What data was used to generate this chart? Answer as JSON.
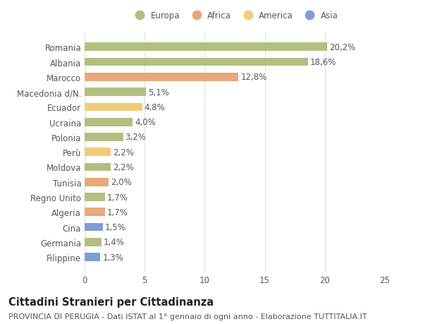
{
  "categories": [
    "Filippine",
    "Germania",
    "Cina",
    "Algeria",
    "Regno Unito",
    "Tunisia",
    "Moldova",
    "Perù",
    "Polonia",
    "Ucraina",
    "Ecuador",
    "Macedonia d/N.",
    "Marocco",
    "Albania",
    "Romania"
  ],
  "values": [
    1.3,
    1.4,
    1.5,
    1.7,
    1.7,
    2.0,
    2.2,
    2.2,
    3.2,
    4.0,
    4.8,
    5.1,
    12.8,
    18.6,
    20.2
  ],
  "labels": [
    "1,3%",
    "1,4%",
    "1,5%",
    "1,7%",
    "1,7%",
    "2,0%",
    "2,2%",
    "2,2%",
    "3,2%",
    "4,0%",
    "4,8%",
    "5,1%",
    "12,8%",
    "18,6%",
    "20,2%"
  ],
  "colors": [
    "#7b9fd4",
    "#b0c080",
    "#7b9fd4",
    "#e8a87c",
    "#b0c080",
    "#e8a87c",
    "#b0c080",
    "#f0cc7a",
    "#b0c080",
    "#b0c080",
    "#f0cc7a",
    "#b0c080",
    "#e8a87c",
    "#b0c080",
    "#b0c080"
  ],
  "legend": [
    {
      "label": "Europa",
      "color": "#b0c080"
    },
    {
      "label": "Africa",
      "color": "#e8a87c"
    },
    {
      "label": "America",
      "color": "#f0cc7a"
    },
    {
      "label": "Asia",
      "color": "#7b9fd4"
    }
  ],
  "title": "Cittadini Stranieri per Cittadinanza",
  "subtitle": "PROVINCIA DI PERUGIA - Dati ISTAT al 1° gennaio di ogni anno - Elaborazione TUTTITALIA.IT",
  "xlim": [
    0,
    25
  ],
  "xticks": [
    0,
    5,
    10,
    15,
    20,
    25
  ],
  "background_color": "#ffffff",
  "grid_color": "#e0e0e0",
  "bar_height": 0.55,
  "label_fontsize": 8.5,
  "tick_fontsize": 8.5,
  "title_fontsize": 10.5,
  "subtitle_fontsize": 8.0
}
